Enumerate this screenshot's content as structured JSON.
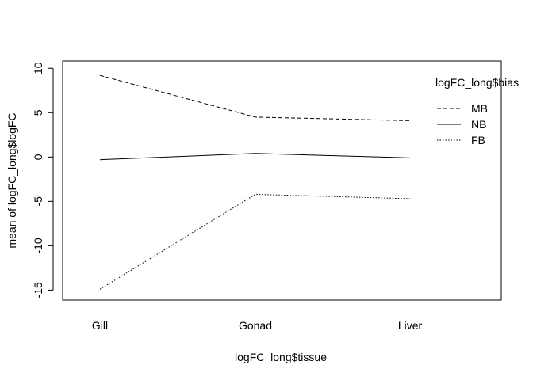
{
  "chart_data": {
    "type": "line",
    "title": "",
    "xlabel": "logFC_long$tissue",
    "ylabel": "mean of  logFC_long$logFC",
    "categories": [
      "Gill",
      "Gonad",
      "Liver"
    ],
    "ylim": [
      -15.5,
      10.2
    ],
    "yticks": [
      -15,
      -10,
      -5,
      0,
      5,
      10
    ],
    "ytick_labels": [
      "-15",
      "-10",
      "-5",
      "0",
      "5",
      "10"
    ],
    "grid": false,
    "legend": {
      "title": "logFC_long$bias",
      "position": "top-right",
      "entries": [
        "MB",
        "NB",
        "FB"
      ]
    },
    "series": [
      {
        "name": "MB",
        "linestyle": "dashed",
        "color": "#000000",
        "values": [
          9.2,
          4.5,
          4.1
        ]
      },
      {
        "name": "NB",
        "linestyle": "solid",
        "color": "#000000",
        "values": [
          -0.3,
          0.4,
          -0.1
        ]
      },
      {
        "name": "FB",
        "linestyle": "dotted",
        "color": "#000000",
        "values": [
          -14.9,
          -4.2,
          -4.7
        ]
      }
    ]
  }
}
